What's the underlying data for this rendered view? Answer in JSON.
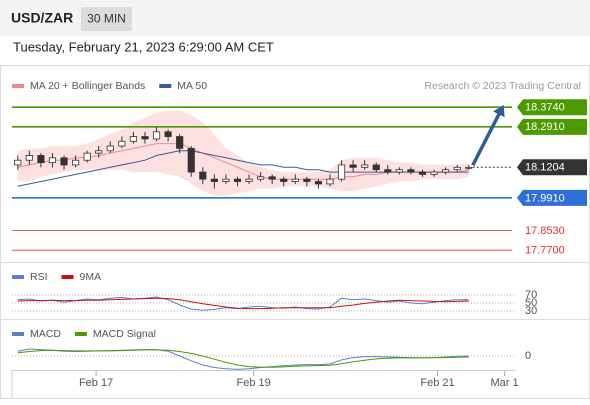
{
  "header": {
    "title": "USD/ZAR",
    "timeframe": "30 MIN",
    "date": "Tuesday, February 21, 2023 6:29:00 AM CET"
  },
  "chart_data": [
    {
      "type": "candlestick",
      "annotation": "Research © 2023 Trading Central",
      "x": [
        0,
        1,
        2,
        3,
        4,
        5,
        6,
        7,
        8,
        9,
        10,
        11,
        12,
        13,
        14,
        15,
        16,
        17,
        18,
        19,
        20,
        21,
        22,
        23,
        24,
        25,
        26,
        27,
        28,
        29,
        30,
        31,
        32,
        33,
        34,
        35,
        36,
        37,
        38,
        39
      ],
      "xlim": [
        -0.5,
        43
      ],
      "ylim": [
        17.72,
        18.51
      ],
      "up_color": "#ffffff",
      "down_color": "#333333",
      "candles": [
        [
          18.13,
          18.17,
          18.11,
          18.15
        ],
        [
          18.15,
          18.19,
          18.13,
          18.17
        ],
        [
          18.17,
          18.18,
          18.12,
          18.14
        ],
        [
          18.14,
          18.18,
          18.12,
          18.16
        ],
        [
          18.16,
          18.17,
          18.11,
          18.13
        ],
        [
          18.13,
          18.17,
          18.12,
          18.15
        ],
        [
          18.15,
          18.19,
          18.14,
          18.18
        ],
        [
          18.18,
          18.21,
          18.16,
          18.19
        ],
        [
          18.19,
          18.23,
          18.18,
          18.21
        ],
        [
          18.21,
          18.25,
          18.2,
          18.23
        ],
        [
          18.23,
          18.27,
          18.22,
          18.25
        ],
        [
          18.25,
          18.27,
          18.22,
          18.24
        ],
        [
          18.24,
          18.29,
          18.23,
          18.27
        ],
        [
          18.27,
          18.28,
          18.23,
          18.25
        ],
        [
          18.25,
          18.26,
          18.18,
          18.2
        ],
        [
          18.2,
          18.21,
          18.08,
          18.1
        ],
        [
          18.1,
          18.12,
          18.05,
          18.07
        ],
        [
          18.07,
          18.09,
          18.03,
          18.06
        ],
        [
          18.06,
          18.09,
          18.05,
          18.07
        ],
        [
          18.07,
          18.08,
          18.04,
          18.06
        ],
        [
          18.06,
          18.09,
          18.05,
          18.07
        ],
        [
          18.07,
          18.1,
          18.06,
          18.08
        ],
        [
          18.08,
          18.09,
          18.05,
          18.07
        ],
        [
          18.07,
          18.08,
          18.04,
          18.06
        ],
        [
          18.06,
          18.09,
          18.05,
          18.07
        ],
        [
          18.07,
          18.08,
          18.04,
          18.06
        ],
        [
          18.06,
          18.07,
          18.03,
          18.05
        ],
        [
          18.05,
          18.09,
          18.04,
          18.07
        ],
        [
          18.07,
          18.15,
          18.06,
          18.13
        ],
        [
          18.13,
          18.15,
          18.1,
          18.12
        ],
        [
          18.12,
          18.15,
          18.11,
          18.13
        ],
        [
          18.13,
          18.14,
          18.1,
          18.11
        ],
        [
          18.11,
          18.13,
          18.09,
          18.1
        ],
        [
          18.1,
          18.12,
          18.09,
          18.11
        ],
        [
          18.11,
          18.12,
          18.09,
          18.1
        ],
        [
          18.1,
          18.11,
          18.08,
          18.09
        ],
        [
          18.09,
          18.11,
          18.08,
          18.1
        ],
        [
          18.1,
          18.12,
          18.09,
          18.11
        ],
        [
          18.11,
          18.13,
          18.1,
          18.12
        ],
        [
          18.12,
          18.13,
          18.11,
          18.12
        ]
      ],
      "series": [
        {
          "name": "MA 20 + Bollinger Bands",
          "color": "#f08a8a",
          "band_color": "#fde0e0",
          "values": [
            18.12,
            18.13,
            18.14,
            18.15,
            18.15,
            18.16,
            18.16,
            18.17,
            18.18,
            18.19,
            18.2,
            18.21,
            18.22,
            18.22,
            18.22,
            18.2,
            18.18,
            18.16,
            18.14,
            18.12,
            18.1,
            18.08,
            18.07,
            18.07,
            18.07,
            18.07,
            18.07,
            18.07,
            18.08,
            18.08,
            18.09,
            18.09,
            18.1,
            18.1,
            18.1,
            18.1,
            18.1,
            18.1,
            18.1,
            18.11
          ],
          "upper": [
            18.19,
            18.2,
            18.2,
            18.21,
            18.21,
            18.21,
            18.22,
            18.24,
            18.26,
            18.28,
            18.31,
            18.33,
            18.35,
            18.36,
            18.36,
            18.34,
            18.31,
            18.26,
            18.2,
            18.17,
            18.14,
            18.12,
            18.11,
            18.1,
            18.1,
            18.1,
            18.1,
            18.11,
            18.15,
            18.16,
            18.16,
            18.16,
            18.15,
            18.14,
            18.14,
            18.13,
            18.13,
            18.13,
            18.13,
            18.14
          ],
          "lower": [
            18.06,
            18.06,
            18.08,
            18.09,
            18.1,
            18.11,
            18.11,
            18.11,
            18.11,
            18.11,
            18.1,
            18.1,
            18.1,
            18.09,
            18.08,
            18.05,
            18.02,
            18.0,
            18.0,
            18.01,
            18.02,
            18.03,
            18.03,
            18.04,
            18.04,
            18.04,
            18.04,
            18.03,
            18.02,
            18.02,
            18.03,
            18.04,
            18.05,
            18.06,
            18.06,
            18.07,
            18.07,
            18.07,
            18.07,
            18.08
          ]
        },
        {
          "name": "MA 50",
          "color": "#3b5b9a",
          "values": [
            18.04,
            18.05,
            18.06,
            18.07,
            18.08,
            18.09,
            18.1,
            18.11,
            18.12,
            18.13,
            18.14,
            18.15,
            18.17,
            18.18,
            18.19,
            18.19,
            18.18,
            18.17,
            18.16,
            18.15,
            18.14,
            18.13,
            18.13,
            18.12,
            18.12,
            18.11,
            18.11,
            18.1,
            18.1,
            18.1,
            18.1,
            18.1,
            18.1,
            18.1,
            18.1,
            18.1,
            18.1,
            18.1,
            18.1,
            18.1
          ]
        }
      ],
      "levels": {
        "values": [
          18.374,
          18.291,
          18.1204,
          17.991,
          17.853,
          17.77
        ],
        "value_labels": [
          "18.3740",
          "18.2910",
          "18.1204",
          "17.9910",
          "17.8530",
          "17.7700"
        ],
        "colors": [
          "#4a9a00",
          "#4a9a00",
          "#333333",
          "#2f6fd8",
          "#e03030",
          "#e03030"
        ],
        "filled": [
          true,
          true,
          true,
          true,
          false,
          false
        ],
        "line_styles": [
          "solid",
          "solid",
          "dotted",
          "solid",
          "solid",
          "solid"
        ]
      }
    },
    {
      "type": "line",
      "ylim": [
        0,
        100
      ],
      "yticks": [
        70,
        50,
        30
      ],
      "series": [
        {
          "name": "RSI",
          "color": "#5b7fd0",
          "values": [
            58,
            60,
            55,
            57,
            52,
            56,
            60,
            58,
            62,
            64,
            60,
            62,
            65,
            58,
            45,
            35,
            32,
            34,
            38,
            36,
            40,
            42,
            38,
            37,
            40,
            36,
            35,
            40,
            62,
            58,
            60,
            56,
            52,
            55,
            50,
            48,
            52,
            56,
            58,
            58
          ]
        },
        {
          "name": "9MA",
          "color": "#d01010",
          "values": [
            55,
            56,
            56,
            57,
            56,
            56,
            57,
            57,
            58,
            59,
            60,
            61,
            62,
            61,
            58,
            53,
            48,
            44,
            40,
            37,
            36,
            36,
            37,
            38,
            38,
            38,
            38,
            38,
            42,
            45,
            49,
            52,
            55,
            57,
            56,
            55,
            54,
            53,
            54,
            55
          ]
        }
      ]
    },
    {
      "type": "line",
      "ylim": [
        -0.05,
        0.05
      ],
      "yticks": [
        0
      ],
      "xticks": [
        {
          "value": 6.77,
          "label": "Feb 17"
        },
        {
          "value": 20.4,
          "label": "Feb 19"
        },
        {
          "value": 36.3,
          "label": "Feb 21"
        },
        {
          "value": 42.1,
          "label": "Mar 1"
        }
      ],
      "series": [
        {
          "name": "MACD",
          "color": "#5b7fd0",
          "values": [
            0.015,
            0.022,
            0.02,
            0.018,
            0.015,
            0.014,
            0.015,
            0.016,
            0.017,
            0.018,
            0.019,
            0.02,
            0.02,
            0.015,
            0.0,
            -0.015,
            -0.028,
            -0.036,
            -0.04,
            -0.042,
            -0.04,
            -0.036,
            -0.033,
            -0.03,
            -0.028,
            -0.027,
            -0.027,
            -0.025,
            -0.012,
            -0.005,
            -0.002,
            -0.002,
            -0.003,
            -0.004,
            -0.005,
            -0.006,
            -0.005,
            -0.003,
            -0.001,
            0.0
          ]
        },
        {
          "name": "MACD Signal",
          "color": "#4a9a00",
          "values": [
            0.01,
            0.014,
            0.017,
            0.018,
            0.017,
            0.016,
            0.016,
            0.016,
            0.016,
            0.017,
            0.018,
            0.019,
            0.019,
            0.018,
            0.014,
            0.008,
            0.0,
            -0.01,
            -0.02,
            -0.028,
            -0.033,
            -0.035,
            -0.035,
            -0.034,
            -0.032,
            -0.031,
            -0.03,
            -0.029,
            -0.024,
            -0.018,
            -0.013,
            -0.009,
            -0.007,
            -0.006,
            -0.006,
            -0.006,
            -0.005,
            -0.005,
            -0.004,
            -0.003
          ]
        }
      ]
    }
  ]
}
